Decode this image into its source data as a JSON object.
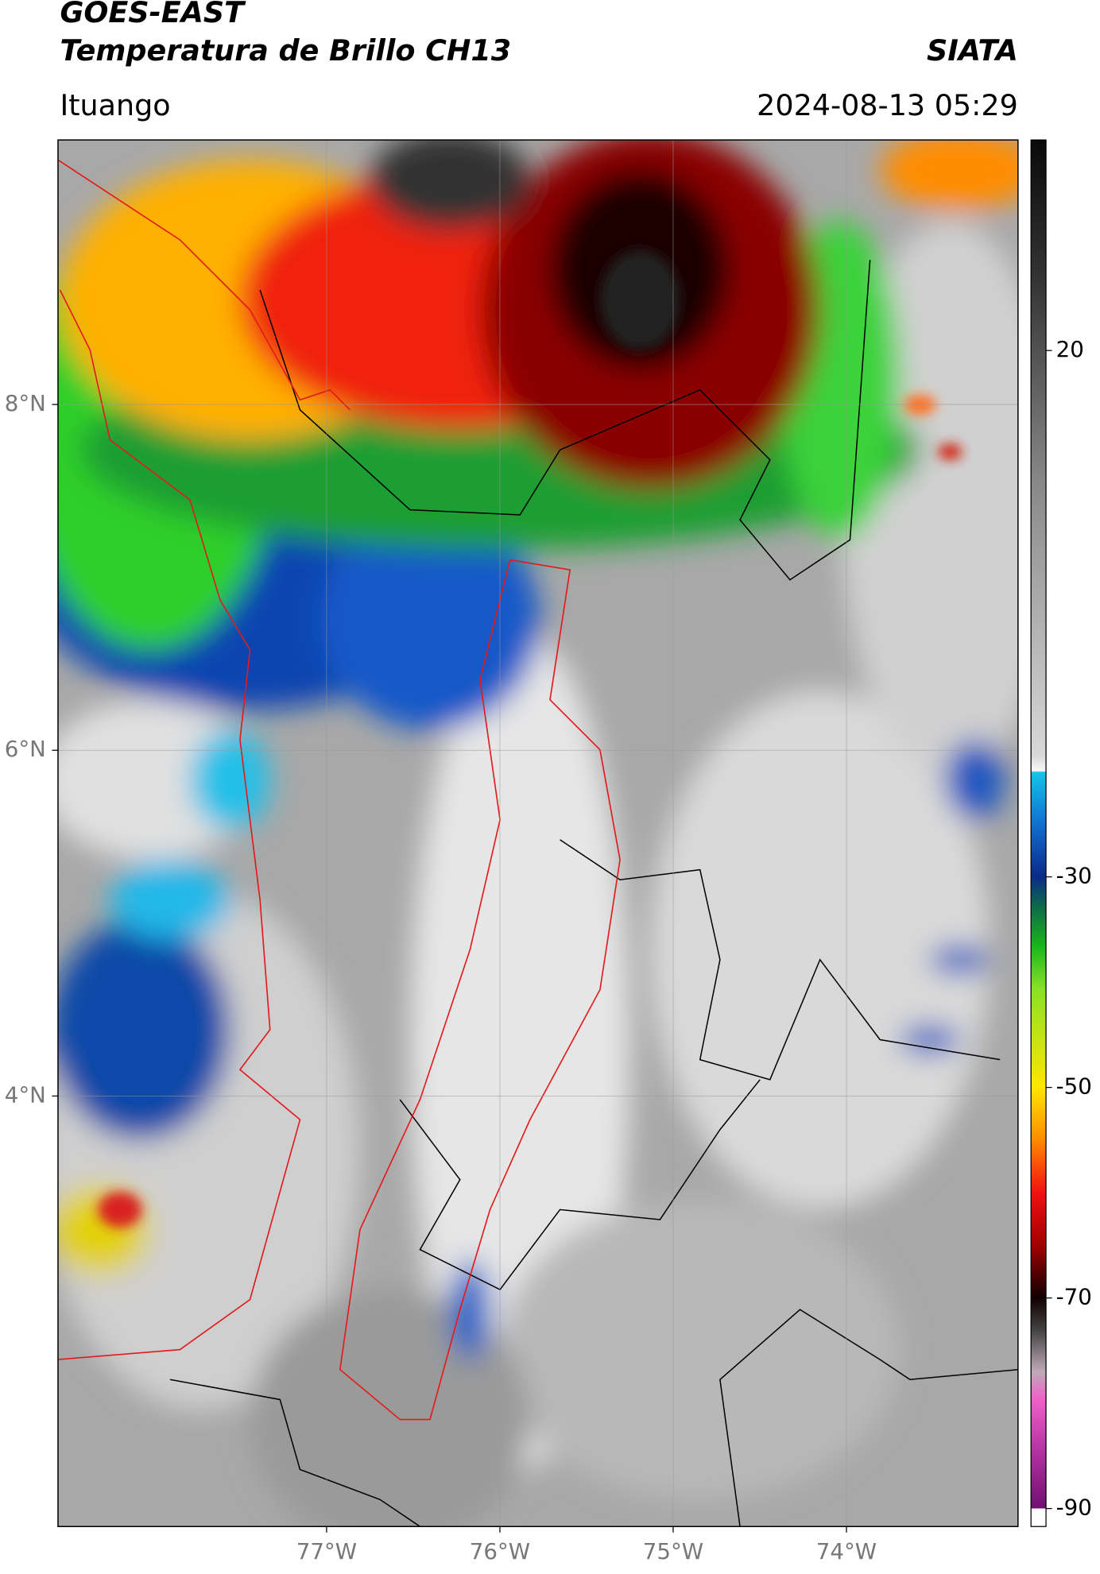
{
  "header": {
    "title": "GOES-EAST",
    "subtitle": "Temperatura de Brillo CH13",
    "brand": "SIATA",
    "location": "Ituango",
    "datetime": "2024-08-13 05:29"
  },
  "map": {
    "xlim": [
      -78.55,
      -73.01
    ],
    "ylim": [
      1.51,
      9.53
    ],
    "xticks": [
      {
        "value": -77,
        "label": "77°W"
      },
      {
        "value": -76,
        "label": "76°W"
      },
      {
        "value": -75,
        "label": "75°W"
      },
      {
        "value": -74,
        "label": "74°W"
      }
    ],
    "yticks": [
      {
        "value": 8,
        "label": "8°N"
      },
      {
        "value": 6,
        "label": "6°N"
      },
      {
        "value": 4,
        "label": "4°N"
      }
    ],
    "grid": true
  },
  "colorbar": {
    "lim": [
      -90,
      40
    ],
    "ticks": [
      20,
      -30,
      -50,
      -70,
      -90
    ]
  }
}
